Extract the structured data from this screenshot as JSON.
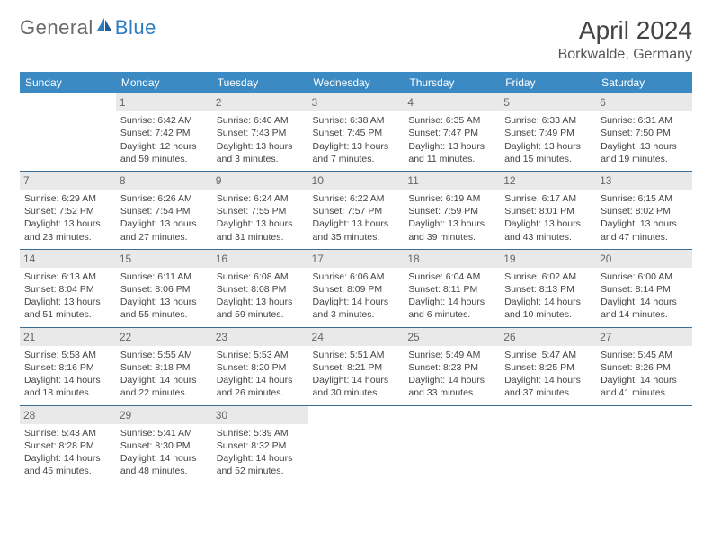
{
  "logo": {
    "text1": "General",
    "text2": "Blue"
  },
  "title": "April 2024",
  "location": "Borkwalde, Germany",
  "colors": {
    "header_bg": "#3b8ac4",
    "header_text": "#ffffff",
    "daynum_bg": "#e9e9e9",
    "rule": "#3b6b90",
    "logo_gray": "#6a6a6a",
    "logo_blue": "#2e7cc0"
  },
  "weekdays": [
    "Sunday",
    "Monday",
    "Tuesday",
    "Wednesday",
    "Thursday",
    "Friday",
    "Saturday"
  ],
  "weeks": [
    [
      {
        "num": "",
        "lines": []
      },
      {
        "num": "1",
        "lines": [
          "Sunrise: 6:42 AM",
          "Sunset: 7:42 PM",
          "Daylight: 12 hours",
          "and 59 minutes."
        ]
      },
      {
        "num": "2",
        "lines": [
          "Sunrise: 6:40 AM",
          "Sunset: 7:43 PM",
          "Daylight: 13 hours",
          "and 3 minutes."
        ]
      },
      {
        "num": "3",
        "lines": [
          "Sunrise: 6:38 AM",
          "Sunset: 7:45 PM",
          "Daylight: 13 hours",
          "and 7 minutes."
        ]
      },
      {
        "num": "4",
        "lines": [
          "Sunrise: 6:35 AM",
          "Sunset: 7:47 PM",
          "Daylight: 13 hours",
          "and 11 minutes."
        ]
      },
      {
        "num": "5",
        "lines": [
          "Sunrise: 6:33 AM",
          "Sunset: 7:49 PM",
          "Daylight: 13 hours",
          "and 15 minutes."
        ]
      },
      {
        "num": "6",
        "lines": [
          "Sunrise: 6:31 AM",
          "Sunset: 7:50 PM",
          "Daylight: 13 hours",
          "and 19 minutes."
        ]
      }
    ],
    [
      {
        "num": "7",
        "lines": [
          "Sunrise: 6:29 AM",
          "Sunset: 7:52 PM",
          "Daylight: 13 hours",
          "and 23 minutes."
        ]
      },
      {
        "num": "8",
        "lines": [
          "Sunrise: 6:26 AM",
          "Sunset: 7:54 PM",
          "Daylight: 13 hours",
          "and 27 minutes."
        ]
      },
      {
        "num": "9",
        "lines": [
          "Sunrise: 6:24 AM",
          "Sunset: 7:55 PM",
          "Daylight: 13 hours",
          "and 31 minutes."
        ]
      },
      {
        "num": "10",
        "lines": [
          "Sunrise: 6:22 AM",
          "Sunset: 7:57 PM",
          "Daylight: 13 hours",
          "and 35 minutes."
        ]
      },
      {
        "num": "11",
        "lines": [
          "Sunrise: 6:19 AM",
          "Sunset: 7:59 PM",
          "Daylight: 13 hours",
          "and 39 minutes."
        ]
      },
      {
        "num": "12",
        "lines": [
          "Sunrise: 6:17 AM",
          "Sunset: 8:01 PM",
          "Daylight: 13 hours",
          "and 43 minutes."
        ]
      },
      {
        "num": "13",
        "lines": [
          "Sunrise: 6:15 AM",
          "Sunset: 8:02 PM",
          "Daylight: 13 hours",
          "and 47 minutes."
        ]
      }
    ],
    [
      {
        "num": "14",
        "lines": [
          "Sunrise: 6:13 AM",
          "Sunset: 8:04 PM",
          "Daylight: 13 hours",
          "and 51 minutes."
        ]
      },
      {
        "num": "15",
        "lines": [
          "Sunrise: 6:11 AM",
          "Sunset: 8:06 PM",
          "Daylight: 13 hours",
          "and 55 minutes."
        ]
      },
      {
        "num": "16",
        "lines": [
          "Sunrise: 6:08 AM",
          "Sunset: 8:08 PM",
          "Daylight: 13 hours",
          "and 59 minutes."
        ]
      },
      {
        "num": "17",
        "lines": [
          "Sunrise: 6:06 AM",
          "Sunset: 8:09 PM",
          "Daylight: 14 hours",
          "and 3 minutes."
        ]
      },
      {
        "num": "18",
        "lines": [
          "Sunrise: 6:04 AM",
          "Sunset: 8:11 PM",
          "Daylight: 14 hours",
          "and 6 minutes."
        ]
      },
      {
        "num": "19",
        "lines": [
          "Sunrise: 6:02 AM",
          "Sunset: 8:13 PM",
          "Daylight: 14 hours",
          "and 10 minutes."
        ]
      },
      {
        "num": "20",
        "lines": [
          "Sunrise: 6:00 AM",
          "Sunset: 8:14 PM",
          "Daylight: 14 hours",
          "and 14 minutes."
        ]
      }
    ],
    [
      {
        "num": "21",
        "lines": [
          "Sunrise: 5:58 AM",
          "Sunset: 8:16 PM",
          "Daylight: 14 hours",
          "and 18 minutes."
        ]
      },
      {
        "num": "22",
        "lines": [
          "Sunrise: 5:55 AM",
          "Sunset: 8:18 PM",
          "Daylight: 14 hours",
          "and 22 minutes."
        ]
      },
      {
        "num": "23",
        "lines": [
          "Sunrise: 5:53 AM",
          "Sunset: 8:20 PM",
          "Daylight: 14 hours",
          "and 26 minutes."
        ]
      },
      {
        "num": "24",
        "lines": [
          "Sunrise: 5:51 AM",
          "Sunset: 8:21 PM",
          "Daylight: 14 hours",
          "and 30 minutes."
        ]
      },
      {
        "num": "25",
        "lines": [
          "Sunrise: 5:49 AM",
          "Sunset: 8:23 PM",
          "Daylight: 14 hours",
          "and 33 minutes."
        ]
      },
      {
        "num": "26",
        "lines": [
          "Sunrise: 5:47 AM",
          "Sunset: 8:25 PM",
          "Daylight: 14 hours",
          "and 37 minutes."
        ]
      },
      {
        "num": "27",
        "lines": [
          "Sunrise: 5:45 AM",
          "Sunset: 8:26 PM",
          "Daylight: 14 hours",
          "and 41 minutes."
        ]
      }
    ],
    [
      {
        "num": "28",
        "lines": [
          "Sunrise: 5:43 AM",
          "Sunset: 8:28 PM",
          "Daylight: 14 hours",
          "and 45 minutes."
        ]
      },
      {
        "num": "29",
        "lines": [
          "Sunrise: 5:41 AM",
          "Sunset: 8:30 PM",
          "Daylight: 14 hours",
          "and 48 minutes."
        ]
      },
      {
        "num": "30",
        "lines": [
          "Sunrise: 5:39 AM",
          "Sunset: 8:32 PM",
          "Daylight: 14 hours",
          "and 52 minutes."
        ]
      },
      {
        "num": "",
        "lines": []
      },
      {
        "num": "",
        "lines": []
      },
      {
        "num": "",
        "lines": []
      },
      {
        "num": "",
        "lines": []
      }
    ]
  ]
}
